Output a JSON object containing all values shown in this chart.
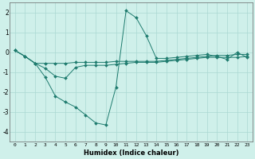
{
  "xlabel": "Humidex (Indice chaleur)",
  "bg_color": "#cff0ea",
  "grid_color": "#aad8d2",
  "line_color": "#1e7b6e",
  "xlim": [
    -0.5,
    23.5
  ],
  "ylim": [
    -4.5,
    2.5
  ],
  "xtick_labels": [
    "0",
    "1",
    "2",
    "3",
    "4",
    "5",
    "6",
    "7",
    "8",
    "9",
    "10",
    "11",
    "12",
    "13",
    "14",
    "15",
    "16",
    "17",
    "18",
    "19",
    "20",
    "21",
    "22",
    "23"
  ],
  "yticks": [
    -4,
    -3,
    -2,
    -1,
    0,
    1,
    2
  ],
  "series1_x": [
    0,
    1,
    2,
    3,
    4,
    5,
    6,
    7,
    8,
    9,
    10,
    11,
    12,
    13,
    14,
    15,
    16,
    17,
    18,
    19,
    20,
    21,
    22,
    23
  ],
  "series1_y": [
    0.1,
    -0.2,
    -0.55,
    -1.25,
    -2.2,
    -2.5,
    -2.75,
    -3.15,
    -3.55,
    -3.65,
    -1.75,
    2.1,
    1.75,
    0.85,
    -0.3,
    -0.3,
    -0.25,
    -0.2,
    -0.15,
    -0.1,
    -0.2,
    -0.35,
    0.0,
    -0.25
  ],
  "series2_x": [
    0,
    1,
    2,
    3,
    4,
    5,
    6,
    7,
    8,
    9,
    10,
    11,
    12,
    13,
    14,
    15,
    16,
    17,
    18,
    19,
    20,
    21,
    22,
    23
  ],
  "series2_y": [
    0.1,
    -0.2,
    -0.55,
    -0.8,
    -1.2,
    -1.3,
    -0.75,
    -0.65,
    -0.65,
    -0.65,
    -0.6,
    -0.55,
    -0.5,
    -0.5,
    -0.5,
    -0.45,
    -0.4,
    -0.35,
    -0.3,
    -0.25,
    -0.25,
    -0.25,
    -0.25,
    -0.2
  ],
  "series3_x": [
    0,
    1,
    2,
    3,
    4,
    5,
    6,
    7,
    8,
    9,
    10,
    11,
    12,
    13,
    14,
    15,
    16,
    17,
    18,
    19,
    20,
    21,
    22,
    23
  ],
  "series3_y": [
    0.1,
    -0.2,
    -0.55,
    -0.55,
    -0.55,
    -0.55,
    -0.5,
    -0.5,
    -0.5,
    -0.5,
    -0.45,
    -0.45,
    -0.45,
    -0.45,
    -0.45,
    -0.4,
    -0.35,
    -0.3,
    -0.25,
    -0.2,
    -0.15,
    -0.15,
    -0.1,
    -0.1
  ]
}
